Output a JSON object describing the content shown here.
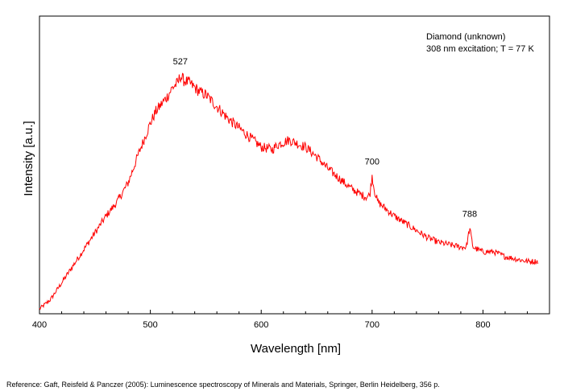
{
  "chart_data": {
    "type": "line",
    "xlabel": "Wavelength [nm]",
    "ylabel": "Intensity [a.u.]",
    "xlim": [
      400,
      860
    ],
    "ylim": [
      0,
      1.25
    ],
    "xticks": [
      400,
      500,
      600,
      700,
      800
    ],
    "grid": false,
    "y_tick_labels_shown": false,
    "series": [
      {
        "color": "#ff0000",
        "x": [
          400,
          410,
          420,
          430,
          440,
          450,
          460,
          470,
          480,
          490,
          500,
          505,
          510,
          515,
          520,
          525,
          527,
          530,
          535,
          540,
          545,
          550,
          560,
          570,
          580,
          590,
          600,
          610,
          615,
          620,
          625,
          630,
          640,
          650,
          660,
          670,
          680,
          690,
          695,
          698,
          700,
          702,
          705,
          710,
          720,
          730,
          740,
          750,
          760,
          770,
          780,
          785,
          788,
          791,
          795,
          800,
          810,
          820,
          830,
          840,
          850
        ],
        "y": [
          0.02,
          0.06,
          0.13,
          0.2,
          0.27,
          0.34,
          0.41,
          0.47,
          0.55,
          0.68,
          0.8,
          0.85,
          0.88,
          0.91,
          0.95,
          0.97,
          1.0,
          0.98,
          0.97,
          0.95,
          0.93,
          0.92,
          0.87,
          0.82,
          0.78,
          0.74,
          0.7,
          0.69,
          0.71,
          0.72,
          0.73,
          0.72,
          0.7,
          0.66,
          0.61,
          0.57,
          0.53,
          0.5,
          0.49,
          0.5,
          0.58,
          0.52,
          0.47,
          0.45,
          0.41,
          0.38,
          0.35,
          0.32,
          0.3,
          0.29,
          0.28,
          0.28,
          0.36,
          0.28,
          0.27,
          0.26,
          0.26,
          0.24,
          0.23,
          0.22,
          0.22
        ]
      }
    ],
    "annotations": [
      {
        "x": 527,
        "y": 1.0,
        "text": "527"
      },
      {
        "x": 700,
        "y": 0.58,
        "text": "700"
      },
      {
        "x": 788,
        "y": 0.36,
        "text": "788"
      }
    ],
    "info_lines": [
      "Diamond (unknown)",
      "308 nm excitation; T = 77 K"
    ]
  },
  "reference": "Reference: Gaft, Reisfeld & Panczer (2005): Luminescence spectroscopy of Minerals and Materials, Springer, Berlin Heidelberg, 356 p."
}
